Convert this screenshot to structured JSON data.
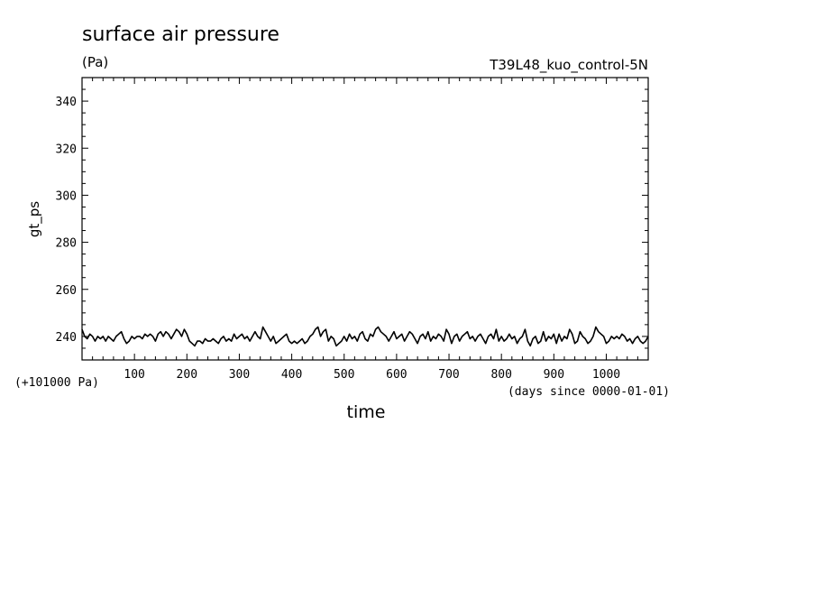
{
  "chart_data": {
    "type": "line",
    "title": "surface air pressure",
    "units": "(Pa)",
    "experiment": "T39L48_kuo_control-5N",
    "ylabel": "gt_ps",
    "xlabel": "time",
    "y_offset_label": "(+101000 Pa)",
    "x_units_label": "(days since 0000-01-01)",
    "xlim": [
      0,
      1080
    ],
    "ylim": [
      230,
      350
    ],
    "x_ticks": [
      "100",
      "200",
      "300",
      "400",
      "500",
      "600",
      "700",
      "800",
      "900",
      "1000"
    ],
    "y_ticks": [
      "240",
      "260",
      "280",
      "300",
      "320",
      "340"
    ],
    "series": [
      {
        "x": [
          0,
          5,
          10,
          15,
          20,
          25,
          30,
          35,
          40,
          45,
          50,
          55,
          60,
          65,
          70,
          75,
          80,
          85,
          90,
          95,
          100,
          105,
          110,
          115,
          120,
          125,
          130,
          135,
          140,
          145,
          150,
          155,
          160,
          165,
          170,
          175,
          180,
          185,
          190,
          195,
          200,
          205,
          210,
          215,
          220,
          225,
          230,
          235,
          240,
          245,
          250,
          255,
          260,
          265,
          270,
          275,
          280,
          285,
          290,
          295,
          300,
          305,
          310,
          315,
          320,
          325,
          330,
          335,
          340,
          345,
          350,
          355,
          360,
          365,
          370,
          375,
          380,
          385,
          390,
          395,
          400,
          405,
          410,
          415,
          420,
          425,
          430,
          435,
          440,
          445,
          450,
          455,
          460,
          465,
          470,
          475,
          480,
          485,
          490,
          495,
          500,
          505,
          510,
          515,
          520,
          525,
          530,
          535,
          540,
          545,
          550,
          555,
          560,
          565,
          570,
          575,
          580,
          585,
          590,
          595,
          600,
          605,
          610,
          615,
          620,
          625,
          630,
          635,
          640,
          645,
          650,
          655,
          660,
          665,
          670,
          675,
          680,
          685,
          690,
          695,
          700,
          705,
          710,
          715,
          720,
          725,
          730,
          735,
          740,
          745,
          750,
          755,
          760,
          765,
          770,
          775,
          780,
          785,
          790,
          795,
          800,
          805,
          810,
          815,
          820,
          825,
          830,
          835,
          840,
          845,
          850,
          855,
          860,
          865,
          870,
          875,
          880,
          885,
          890,
          895,
          900,
          905,
          910,
          915,
          920,
          925,
          930,
          935,
          940,
          945,
          950,
          955,
          960,
          965,
          970,
          975,
          980,
          985,
          990,
          995,
          1000,
          1005,
          1010,
          1015,
          1020,
          1025,
          1030,
          1035,
          1040,
          1045,
          1050,
          1055,
          1060,
          1065,
          1070,
          1075,
          1080
        ],
        "y": [
          243,
          240,
          239,
          241,
          240,
          238,
          240,
          239,
          240,
          238,
          240,
          239,
          238,
          240,
          241,
          242,
          239,
          237,
          238,
          240,
          239,
          240,
          240,
          239,
          241,
          240,
          241,
          240,
          238,
          241,
          242,
          240,
          242,
          241,
          239,
          241,
          243,
          242,
          240,
          243,
          241,
          238,
          237,
          236,
          238,
          238,
          237,
          239,
          238,
          238,
          239,
          238,
          237,
          239,
          240,
          238,
          239,
          238,
          241,
          239,
          240,
          241,
          239,
          240,
          238,
          240,
          242,
          240,
          239,
          244,
          242,
          240,
          238,
          240,
          237,
          238,
          239,
          240,
          241,
          238,
          237,
          238,
          237,
          238,
          239,
          237,
          238,
          240,
          241,
          243,
          244,
          240,
          242,
          243,
          238,
          240,
          239,
          236,
          237,
          238,
          240,
          238,
          241,
          239,
          240,
          238,
          241,
          242,
          239,
          238,
          241,
          240,
          243,
          244,
          242,
          241,
          240,
          238,
          240,
          242,
          239,
          240,
          241,
          238,
          240,
          242,
          241,
          239,
          237,
          240,
          241,
          239,
          242,
          238,
          240,
          239,
          241,
          240,
          238,
          243,
          241,
          237,
          240,
          241,
          238,
          240,
          241,
          242,
          239,
          240,
          238,
          240,
          241,
          239,
          237,
          240,
          241,
          239,
          243,
          238,
          240,
          238,
          239,
          241,
          239,
          240,
          237,
          239,
          240,
          243,
          238,
          236,
          239,
          240,
          237,
          238,
          242,
          238,
          240,
          239,
          241,
          237,
          241,
          238,
          240,
          239,
          243,
          241,
          237,
          238,
          242,
          240,
          239,
          237,
          238,
          240,
          244,
          242,
          241,
          240,
          237,
          238,
          240,
          239,
          240,
          239,
          241,
          240,
          238,
          239,
          237,
          239,
          240,
          238,
          237,
          238,
          240
        ]
      }
    ]
  }
}
